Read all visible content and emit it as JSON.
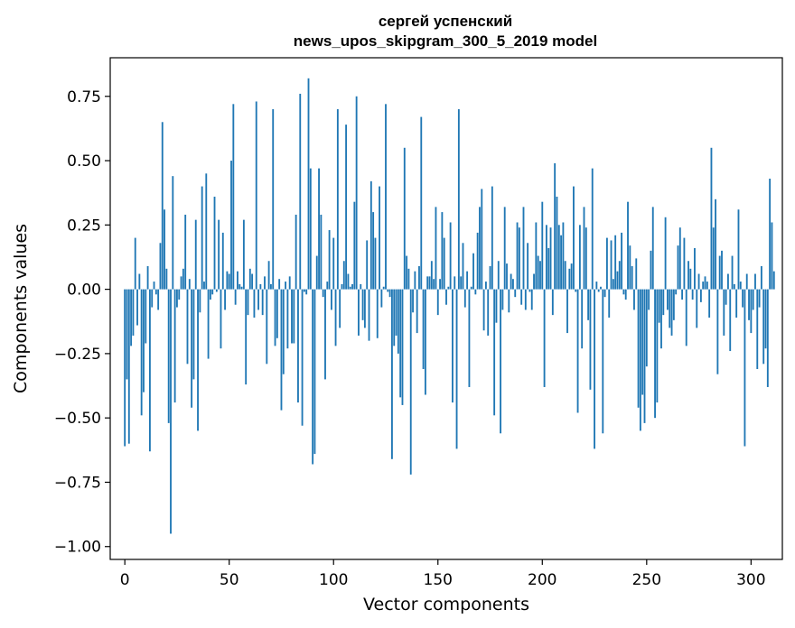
{
  "chart_data": {
    "type": "bar",
    "title": "сергей успенский",
    "subtitle": "news_upos_skipgram_300_5_2019 model",
    "xlabel": "Vector components",
    "ylabel": "Components values",
    "xlim": [
      -7,
      315
    ],
    "ylim": [
      -1.05,
      0.9
    ],
    "xticks": [
      0,
      50,
      100,
      150,
      200,
      250,
      300
    ],
    "yticks": [
      -1.0,
      -0.75,
      -0.5,
      -0.25,
      0.0,
      0.25,
      0.5,
      0.75
    ],
    "grid": false,
    "bar_color": "#1f77b4",
    "values": [
      -0.61,
      -0.35,
      -0.6,
      -0.22,
      -0.18,
      0.2,
      -0.14,
      0.06,
      -0.49,
      -0.4,
      -0.21,
      0.09,
      -0.63,
      -0.07,
      0.03,
      -0.02,
      -0.08,
      0.18,
      0.65,
      0.31,
      0.08,
      -0.52,
      -0.95,
      0.44,
      -0.44,
      -0.07,
      -0.04,
      0.05,
      0.08,
      0.29,
      -0.29,
      0.04,
      -0.46,
      -0.35,
      0.27,
      -0.55,
      -0.09,
      0.4,
      0.03,
      0.45,
      -0.27,
      -0.04,
      -0.02,
      0.36,
      -0.01,
      0.27,
      -0.23,
      0.22,
      -0.08,
      0.07,
      0.06,
      0.5,
      0.72,
      -0.06,
      0.07,
      0.02,
      0.01,
      0.27,
      -0.37,
      -0.1,
      0.08,
      0.06,
      -0.11,
      0.73,
      -0.08,
      0.02,
      -0.1,
      0.05,
      -0.29,
      0.11,
      0.02,
      0.7,
      -0.22,
      -0.19,
      0.04,
      -0.47,
      -0.33,
      0.03,
      -0.23,
      0.05,
      -0.21,
      -0.21,
      0.29,
      -0.44,
      0.76,
      -0.53,
      -0.01,
      -0.02,
      0.82,
      0.47,
      -0.68,
      -0.64,
      0.13,
      0.47,
      0.29,
      -0.03,
      -0.35,
      0.03,
      0.23,
      -0.08,
      0.2,
      -0.22,
      0.7,
      -0.15,
      0.02,
      0.11,
      0.64,
      0.06,
      0.01,
      0.02,
      0.34,
      0.75,
      -0.18,
      0.02,
      -0.12,
      -0.15,
      0.19,
      -0.2,
      0.42,
      0.3,
      0.2,
      -0.19,
      0.4,
      -0.07,
      0.01,
      0.72,
      -0.01,
      -0.03,
      -0.66,
      -0.22,
      -0.18,
      -0.25,
      -0.42,
      -0.45,
      0.55,
      0.13,
      0.08,
      -0.72,
      -0.09,
      0.07,
      -0.17,
      0.09,
      0.67,
      -0.31,
      -0.41,
      0.05,
      0.05,
      0.11,
      0.04,
      0.32,
      -0.1,
      0.04,
      0.3,
      0.2,
      -0.06,
      0.01,
      0.26,
      -0.44,
      0.05,
      -0.62,
      0.7,
      0.05,
      0.18,
      -0.07,
      0.07,
      -0.38,
      0.01,
      0.14,
      -0.02,
      0.22,
      0.32,
      0.39,
      -0.16,
      0.03,
      -0.18,
      0.09,
      0.4,
      -0.49,
      -0.13,
      0.11,
      -0.56,
      -0.08,
      0.32,
      0.1,
      -0.09,
      0.06,
      0.04,
      -0.03,
      0.26,
      0.24,
      -0.06,
      0.32,
      -0.08,
      0.18,
      -0.01,
      -0.08,
      0.06,
      0.26,
      0.13,
      0.11,
      0.34,
      -0.38,
      0.25,
      0.16,
      0.24,
      -0.1,
      0.49,
      0.36,
      0.25,
      0.21,
      0.26,
      0.11,
      -0.17,
      0.08,
      0.1,
      0.4,
      -0.01,
      -0.48,
      0.25,
      -0.23,
      0.32,
      0.24,
      -0.12,
      -0.39,
      0.47,
      -0.62,
      0.03,
      -0.01,
      0.01,
      -0.56,
      -0.03,
      0.2,
      -0.11,
      0.19,
      0.04,
      0.21,
      0.07,
      0.11,
      0.22,
      -0.02,
      -0.04,
      0.34,
      0.17,
      0.09,
      -0.08,
      0.12,
      -0.46,
      -0.55,
      -0.41,
      -0.52,
      -0.3,
      -0.08,
      0.15,
      0.32,
      -0.5,
      -0.44,
      -0.13,
      -0.23,
      -0.1,
      0.28,
      -0.08,
      -0.15,
      -0.18,
      -0.12,
      -0.02,
      0.17,
      0.24,
      -0.04,
      0.2,
      -0.22,
      0.11,
      0.08,
      -0.04,
      0.16,
      -0.15,
      0.06,
      -0.05,
      0.03,
      0.05,
      0.03,
      -0.11,
      0.55,
      0.24,
      0.35,
      -0.33,
      0.13,
      0.15,
      -0.18,
      -0.06,
      0.06,
      -0.24,
      0.13,
      0.02,
      -0.11,
      0.31,
      0.03,
      -0.07,
      -0.61,
      0.06,
      -0.12,
      -0.17,
      -0.08,
      0.06,
      -0.31,
      -0.07,
      0.09,
      -0.29,
      -0.23,
      -0.38,
      0.43,
      0.26,
      0.07
    ]
  }
}
